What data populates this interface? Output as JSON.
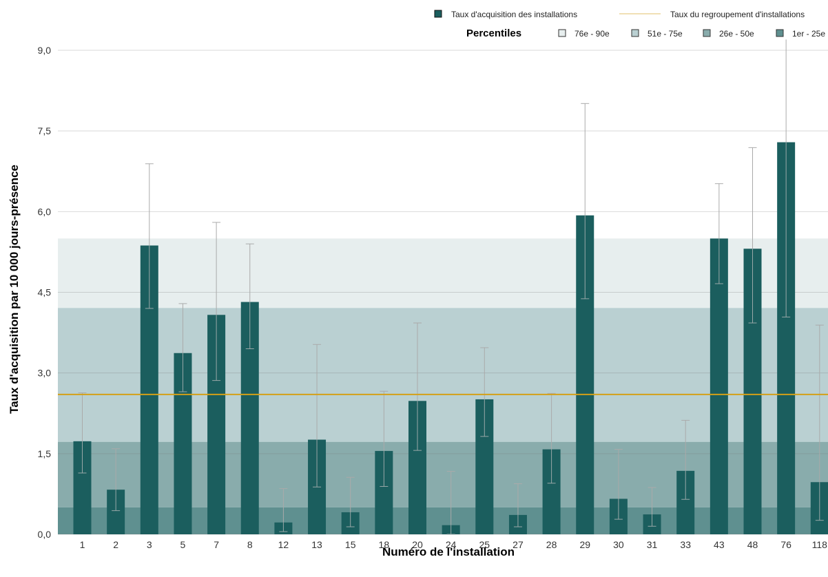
{
  "chart_data": {
    "type": "bar",
    "xlabel": "Numéro de l'installation",
    "ylabel": "Taux d'acquisition par 10 000 jours-présence",
    "ylim": [
      0,
      9.0
    ],
    "yticks": [
      "0,0",
      "1,5",
      "3,0",
      "4,5",
      "6,0",
      "7,5",
      "9,0"
    ],
    "ytick_values": [
      0,
      1.5,
      3.0,
      4.5,
      6.0,
      7.5,
      9.0
    ],
    "grid": true,
    "categories": [
      "1",
      "2",
      "3",
      "5",
      "7",
      "8",
      "12",
      "13",
      "15",
      "18",
      "20",
      "24",
      "25",
      "27",
      "28",
      "29",
      "30",
      "31",
      "33",
      "43",
      "48",
      "76",
      "118"
    ],
    "series": [
      {
        "name": "Taux  d'acquisition des installations",
        "color": "#1b5e5e",
        "values": [
          1.73,
          0.83,
          5.37,
          3.37,
          4.08,
          4.32,
          0.22,
          1.76,
          0.41,
          1.55,
          2.48,
          0.17,
          2.51,
          0.36,
          1.58,
          5.93,
          0.66,
          0.37,
          1.18,
          5.5,
          5.31,
          7.29,
          0.97
        ],
        "error_low": [
          1.14,
          0.44,
          4.2,
          2.65,
          2.86,
          3.45,
          0.05,
          0.88,
          0.14,
          0.89,
          1.56,
          0.0,
          1.82,
          0.14,
          0.95,
          4.38,
          0.28,
          0.15,
          0.65,
          4.66,
          3.93,
          4.04,
          0.26
        ],
        "error_high": [
          2.63,
          1.59,
          6.89,
          4.29,
          5.8,
          5.4,
          0.85,
          3.53,
          1.06,
          2.66,
          3.93,
          1.17,
          3.47,
          0.94,
          2.62,
          8.01,
          1.58,
          0.87,
          2.12,
          6.52,
          7.19,
          9.3,
          3.89
        ]
      }
    ],
    "reference_line": {
      "name": "Taux  du regroupement d'installations",
      "value": 2.6,
      "color": "#d4a017"
    },
    "percentile_bands": {
      "label": "Percentiles",
      "bands": [
        {
          "name": "1er - 25e",
          "from": 0.0,
          "to": 0.5,
          "color": "#5f9090"
        },
        {
          "name": "26e - 50e",
          "from": 0.5,
          "to": 1.72,
          "color": "#89acac"
        },
        {
          "name": "51e - 75e",
          "from": 1.72,
          "to": 4.21,
          "color": "#bad0d2"
        },
        {
          "name": "76e - 90e",
          "from": 4.21,
          "to": 5.5,
          "color": "#e7eeee"
        }
      ]
    },
    "legend_position": "top-right"
  }
}
